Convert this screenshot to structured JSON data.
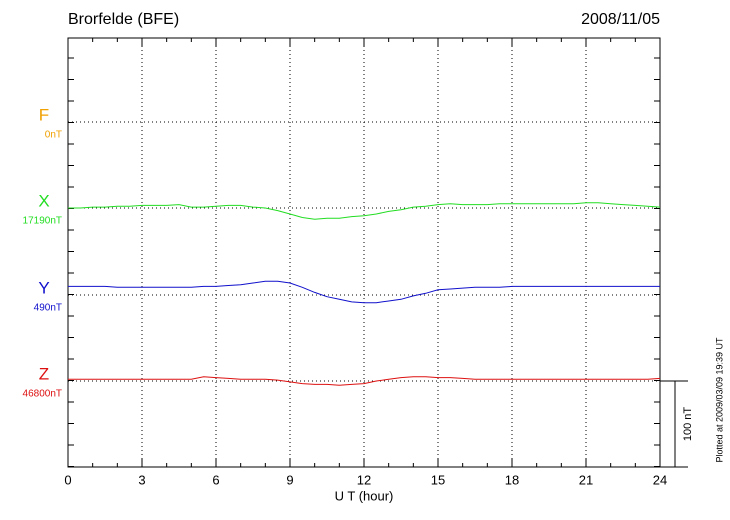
{
  "chart_data": {
    "type": "line",
    "title": "Brorfelde (BFE)",
    "date": "2008/11/05",
    "xlabel": "U T (hour)",
    "footnote": "Plotted at 2009/03/09 19:39 UT",
    "scale_bar": {
      "value": 100,
      "label": "100 nT"
    },
    "xlim": [
      0,
      24
    ],
    "xticks": [
      0,
      3,
      6,
      9,
      12,
      15,
      18,
      21,
      24
    ],
    "grid": true,
    "x": [
      0,
      0.5,
      1,
      1.5,
      2,
      2.5,
      3,
      3.5,
      4,
      4.5,
      5,
      5.5,
      6,
      6.5,
      7,
      7.5,
      8,
      8.5,
      9,
      9.5,
      10,
      10.5,
      11,
      11.5,
      12,
      12.5,
      13,
      13.5,
      14,
      14.5,
      15,
      15.5,
      16,
      16.5,
      17,
      17.5,
      18,
      18.5,
      19,
      19.5,
      20,
      20.5,
      21,
      21.5,
      22,
      22.5,
      23,
      23.5,
      24
    ],
    "series": [
      {
        "name": "F",
        "color": "#f0a000",
        "baseline": {
          "value": 0,
          "label": "0nT"
        },
        "values": [
          null,
          null,
          null,
          null,
          null,
          null,
          null,
          null,
          null,
          null,
          null,
          null,
          null,
          null,
          null,
          null,
          null,
          null,
          null,
          null,
          null,
          null,
          null,
          null,
          null,
          null,
          null,
          null,
          null,
          null,
          null,
          null,
          null,
          null,
          null,
          null,
          null,
          null,
          null,
          null,
          null,
          null,
          null,
          null,
          null,
          null,
          null,
          null,
          null
        ]
      },
      {
        "name": "X",
        "color": "#22dd22",
        "baseline": {
          "value": 17190,
          "label": "17190nT"
        },
        "values": [
          17190,
          17190,
          17191,
          17191,
          17192,
          17192,
          17193,
          17193,
          17193,
          17194,
          17191,
          17191,
          17192,
          17193,
          17193,
          17191,
          17190,
          17187,
          17183,
          17179,
          17177,
          17178,
          17178,
          17180,
          17181,
          17183,
          17186,
          17188,
          17191,
          17192,
          17194,
          17195,
          17194,
          17194,
          17194,
          17195,
          17195,
          17195,
          17195,
          17195,
          17195,
          17195,
          17196,
          17196,
          17195,
          17194,
          17193,
          17192,
          17191
        ]
      },
      {
        "name": "Y",
        "color": "#1010cc",
        "baseline": {
          "value": 490,
          "label": "490nT"
        },
        "values": [
          500,
          500,
          500,
          500,
          499,
          499,
          499,
          499,
          499,
          499,
          499,
          500,
          500,
          501,
          502,
          504,
          506,
          506,
          504,
          499,
          493,
          488,
          485,
          482,
          481,
          481,
          483,
          485,
          489,
          492,
          496,
          497,
          498,
          499,
          499,
          499,
          500,
          500,
          500,
          500,
          500,
          500,
          500,
          500,
          500,
          500,
          500,
          500,
          500
        ]
      },
      {
        "name": "Z",
        "color": "#dd1010",
        "baseline": {
          "value": 46800,
          "label": "46800nT"
        },
        "values": [
          46802,
          46802,
          46802,
          46802,
          46802,
          46802,
          46802,
          46802,
          46802,
          46802,
          46802,
          46805,
          46804,
          46803,
          46802,
          46802,
          46802,
          46801,
          46799,
          46797,
          46796,
          46796,
          46795,
          46796,
          46797,
          46800,
          46802,
          46804,
          46805,
          46805,
          46804,
          46804,
          46803,
          46802,
          46802,
          46802,
          46802,
          46802,
          46802,
          46802,
          46802,
          46802,
          46802,
          46802,
          46802,
          46802,
          46802,
          46802,
          46803
        ]
      }
    ]
  }
}
